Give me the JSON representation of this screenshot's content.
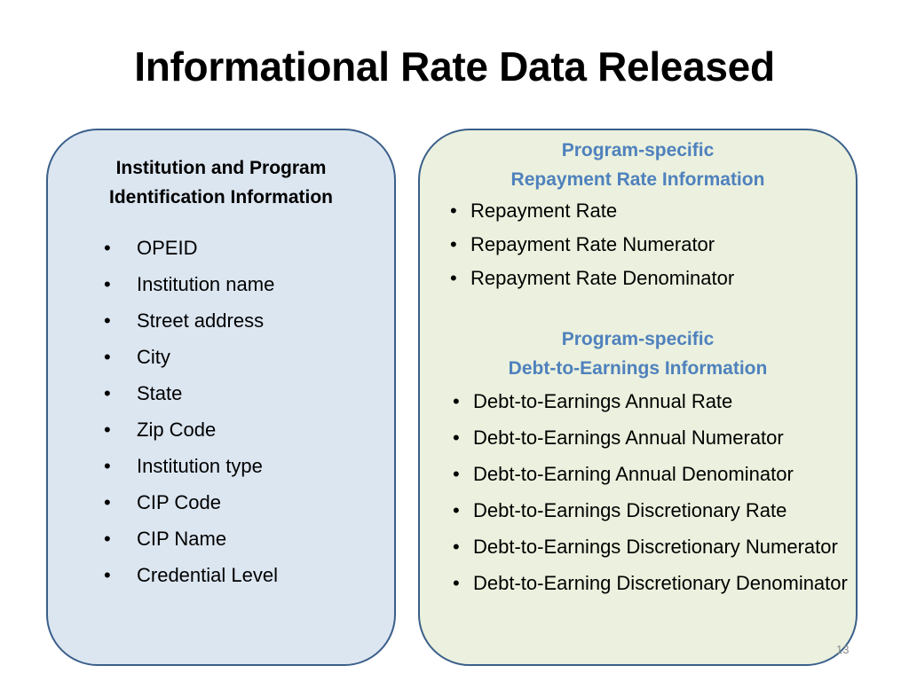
{
  "title": "Informational Rate Data Released",
  "left_box": {
    "heading_line1": "Institution and Program",
    "heading_line2": "Identification Information",
    "items": [
      "OPEID",
      "Institution name",
      "Street address",
      "City",
      "State",
      "Zip Code",
      "Institution type",
      "CIP Code",
      "CIP Name",
      "Credential Level"
    ]
  },
  "right_box": {
    "section1": {
      "heading_line1": "Program-specific",
      "heading_line2": "Repayment Rate Information",
      "items": [
        "Repayment Rate",
        "Repayment Rate Numerator",
        "Repayment Rate Denominator"
      ]
    },
    "section2": {
      "heading_line1": "Program-specific",
      "heading_line2": "Debt-to-Earnings Information",
      "items": [
        "Debt-to-Earnings Annual Rate",
        "Debt-to-Earnings Annual Numerator",
        "Debt-to-Earning Annual Denominator",
        "Debt-to-Earnings Discretionary Rate",
        "Debt-to-Earnings Discretionary Numerator",
        "Debt-to-Earning Discretionary Denominator"
      ]
    }
  },
  "bullet": "•",
  "page_number": "13",
  "colors": {
    "heading_blue": "#4f81bd",
    "left_fill": "#dce6f1",
    "right_fill": "#ebf1de",
    "border": "#3a5f8a"
  }
}
